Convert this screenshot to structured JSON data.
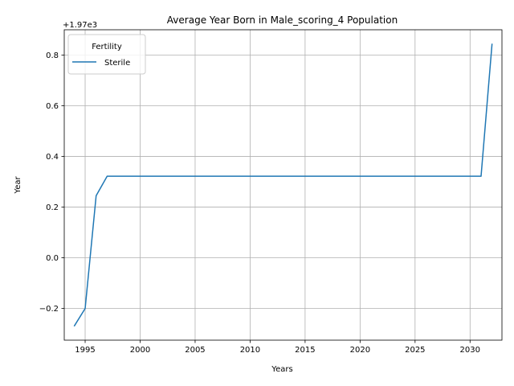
{
  "chart_data": {
    "type": "line",
    "title": "Average Year Born in Male_scoring_4 Population",
    "xlabel": "Years",
    "ylabel": "Year",
    "y_offset_label": "+1.97e3",
    "xlim": [
      1993.1,
      2032.9
    ],
    "ylim": [
      -0.325,
      0.9
    ],
    "x_ticks": [
      1995,
      2000,
      2005,
      2010,
      2015,
      2020,
      2025,
      2030
    ],
    "x_tick_labels": [
      "1995",
      "2000",
      "2005",
      "2010",
      "2015",
      "2020",
      "2025",
      "2030"
    ],
    "y_ticks": [
      -0.2,
      0.0,
      0.2,
      0.4,
      0.6,
      0.8
    ],
    "y_tick_labels": [
      "−0.2",
      "0.0",
      "0.2",
      "0.4",
      "0.6",
      "0.8"
    ],
    "grid": true,
    "legend": {
      "title": "Fertility",
      "position": "top-left"
    },
    "series": [
      {
        "name": "Sterile",
        "color": "#1f77b4",
        "x": [
          1994,
          1995,
          1996,
          1997,
          1998,
          1999,
          2000,
          2001,
          2002,
          2003,
          2004,
          2005,
          2006,
          2007,
          2008,
          2009,
          2010,
          2011,
          2012,
          2013,
          2014,
          2015,
          2016,
          2017,
          2018,
          2019,
          2020,
          2021,
          2022,
          2023,
          2024,
          2025,
          2026,
          2027,
          2028,
          2029,
          2030,
          2031,
          2032
        ],
        "y": [
          -0.27,
          -0.2,
          0.245,
          0.322,
          0.322,
          0.322,
          0.322,
          0.322,
          0.322,
          0.322,
          0.322,
          0.322,
          0.322,
          0.322,
          0.322,
          0.322,
          0.322,
          0.322,
          0.322,
          0.322,
          0.322,
          0.322,
          0.322,
          0.322,
          0.322,
          0.322,
          0.322,
          0.322,
          0.322,
          0.322,
          0.322,
          0.322,
          0.322,
          0.322,
          0.322,
          0.322,
          0.322,
          0.322,
          0.845
        ]
      }
    ]
  }
}
